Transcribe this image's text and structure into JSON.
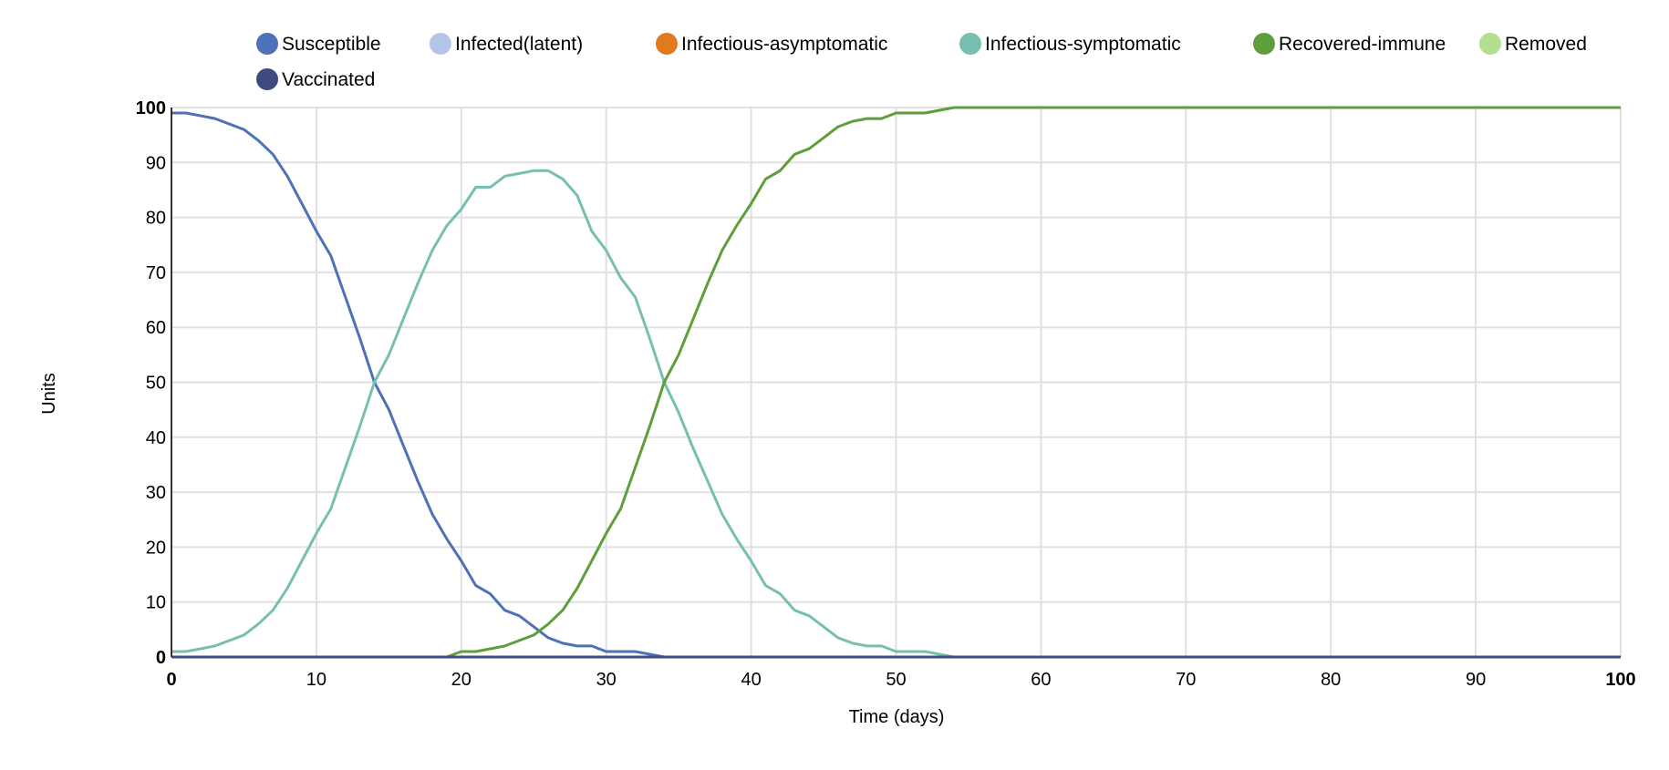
{
  "chart_data": {
    "type": "line",
    "title": "",
    "xlabel": "Time (days)",
    "ylabel": "Units",
    "xlim": [
      0,
      100
    ],
    "ylim": [
      0,
      100
    ],
    "grid": true,
    "legend_placement": "top",
    "x_ticks": [
      "0",
      "10",
      "20",
      "30",
      "40",
      "50",
      "60",
      "70",
      "80",
      "90",
      "100"
    ],
    "y_ticks": [
      "0",
      "10",
      "20",
      "30",
      "40",
      "50",
      "60",
      "70",
      "80",
      "90",
      "100"
    ],
    "series": [
      {
        "name": "Susceptible",
        "color": "#4d72b8",
        "x": [
          0,
          1,
          2,
          3,
          4,
          5,
          6,
          7,
          8,
          9,
          10,
          11,
          12,
          13,
          14,
          15,
          16,
          17,
          18,
          19,
          20,
          21,
          22,
          23,
          24,
          25,
          26,
          27,
          28,
          29,
          30,
          31,
          32,
          33,
          34,
          100
        ],
        "y": [
          99,
          99,
          98.5,
          98,
          97,
          96,
          94,
          91.5,
          87.5,
          82.5,
          77.5,
          73,
          65.5,
          58,
          50,
          45,
          38.5,
          32,
          26,
          21.5,
          17.5,
          13,
          11.5,
          8.5,
          7.5,
          5.5,
          3.5,
          2.5,
          2,
          2,
          1,
          1,
          1,
          0.5,
          0,
          0
        ]
      },
      {
        "name": "Infected(latent)",
        "color": "#b4c4e8",
        "x": [
          0,
          100
        ],
        "y": [
          0,
          0
        ]
      },
      {
        "name": "Infectious-asymptomatic",
        "color": "#e07a1f",
        "x": [
          0,
          100
        ],
        "y": [
          0,
          0
        ]
      },
      {
        "name": "Infectious-symptomatic",
        "color": "#76bfb1",
        "x": [
          0,
          1,
          2,
          3,
          4,
          5,
          6,
          7,
          8,
          9,
          10,
          11,
          12,
          13,
          14,
          15,
          16,
          17,
          18,
          19,
          20,
          21,
          22,
          23,
          24,
          25,
          26,
          27,
          28,
          29,
          30,
          31,
          32,
          33,
          34,
          35,
          36,
          37,
          38,
          39,
          40,
          41,
          42,
          43,
          44,
          45,
          46,
          47,
          48,
          49,
          50,
          51,
          52,
          53,
          54,
          100
        ],
        "y": [
          1,
          1,
          1.5,
          2,
          3,
          4,
          6,
          8.5,
          12.5,
          17.5,
          22.5,
          27,
          34.5,
          42,
          50,
          55,
          61.5,
          68,
          74,
          78.5,
          81.5,
          85.5,
          85.5,
          87.5,
          88,
          88.5,
          88.5,
          87,
          84,
          77.5,
          74,
          69,
          65.5,
          58,
          50,
          44.5,
          38,
          32,
          26,
          21.5,
          17.5,
          13,
          11.5,
          8.5,
          7.5,
          5.5,
          3.5,
          2.5,
          2,
          2,
          1,
          1,
          1,
          0.5,
          0,
          0
        ]
      },
      {
        "name": "Recovered-immune",
        "color": "#5e9e3b",
        "x": [
          0,
          19,
          20,
          21,
          22,
          23,
          24,
          25,
          26,
          27,
          28,
          29,
          30,
          31,
          32,
          33,
          34,
          35,
          36,
          37,
          38,
          39,
          40,
          41,
          42,
          43,
          44,
          45,
          46,
          47,
          48,
          49,
          50,
          51,
          52,
          53,
          54,
          100
        ],
        "y": [
          0,
          0,
          1,
          1,
          1.5,
          2,
          3,
          4,
          6,
          8.5,
          12.5,
          17.5,
          22.5,
          27,
          34.5,
          42,
          50,
          55,
          61.5,
          68,
          74,
          78.5,
          82.5,
          87,
          88.5,
          91.5,
          92.5,
          94.5,
          96.5,
          97.5,
          98,
          98,
          99,
          99,
          99,
          99.5,
          100,
          100
        ]
      },
      {
        "name": "Removed",
        "color": "#b3e08e",
        "x": [
          0,
          100
        ],
        "y": [
          0,
          0
        ]
      },
      {
        "name": "Vaccinated",
        "color": "#3f4a80",
        "x": [
          0,
          100
        ],
        "y": [
          0,
          0
        ]
      }
    ]
  }
}
